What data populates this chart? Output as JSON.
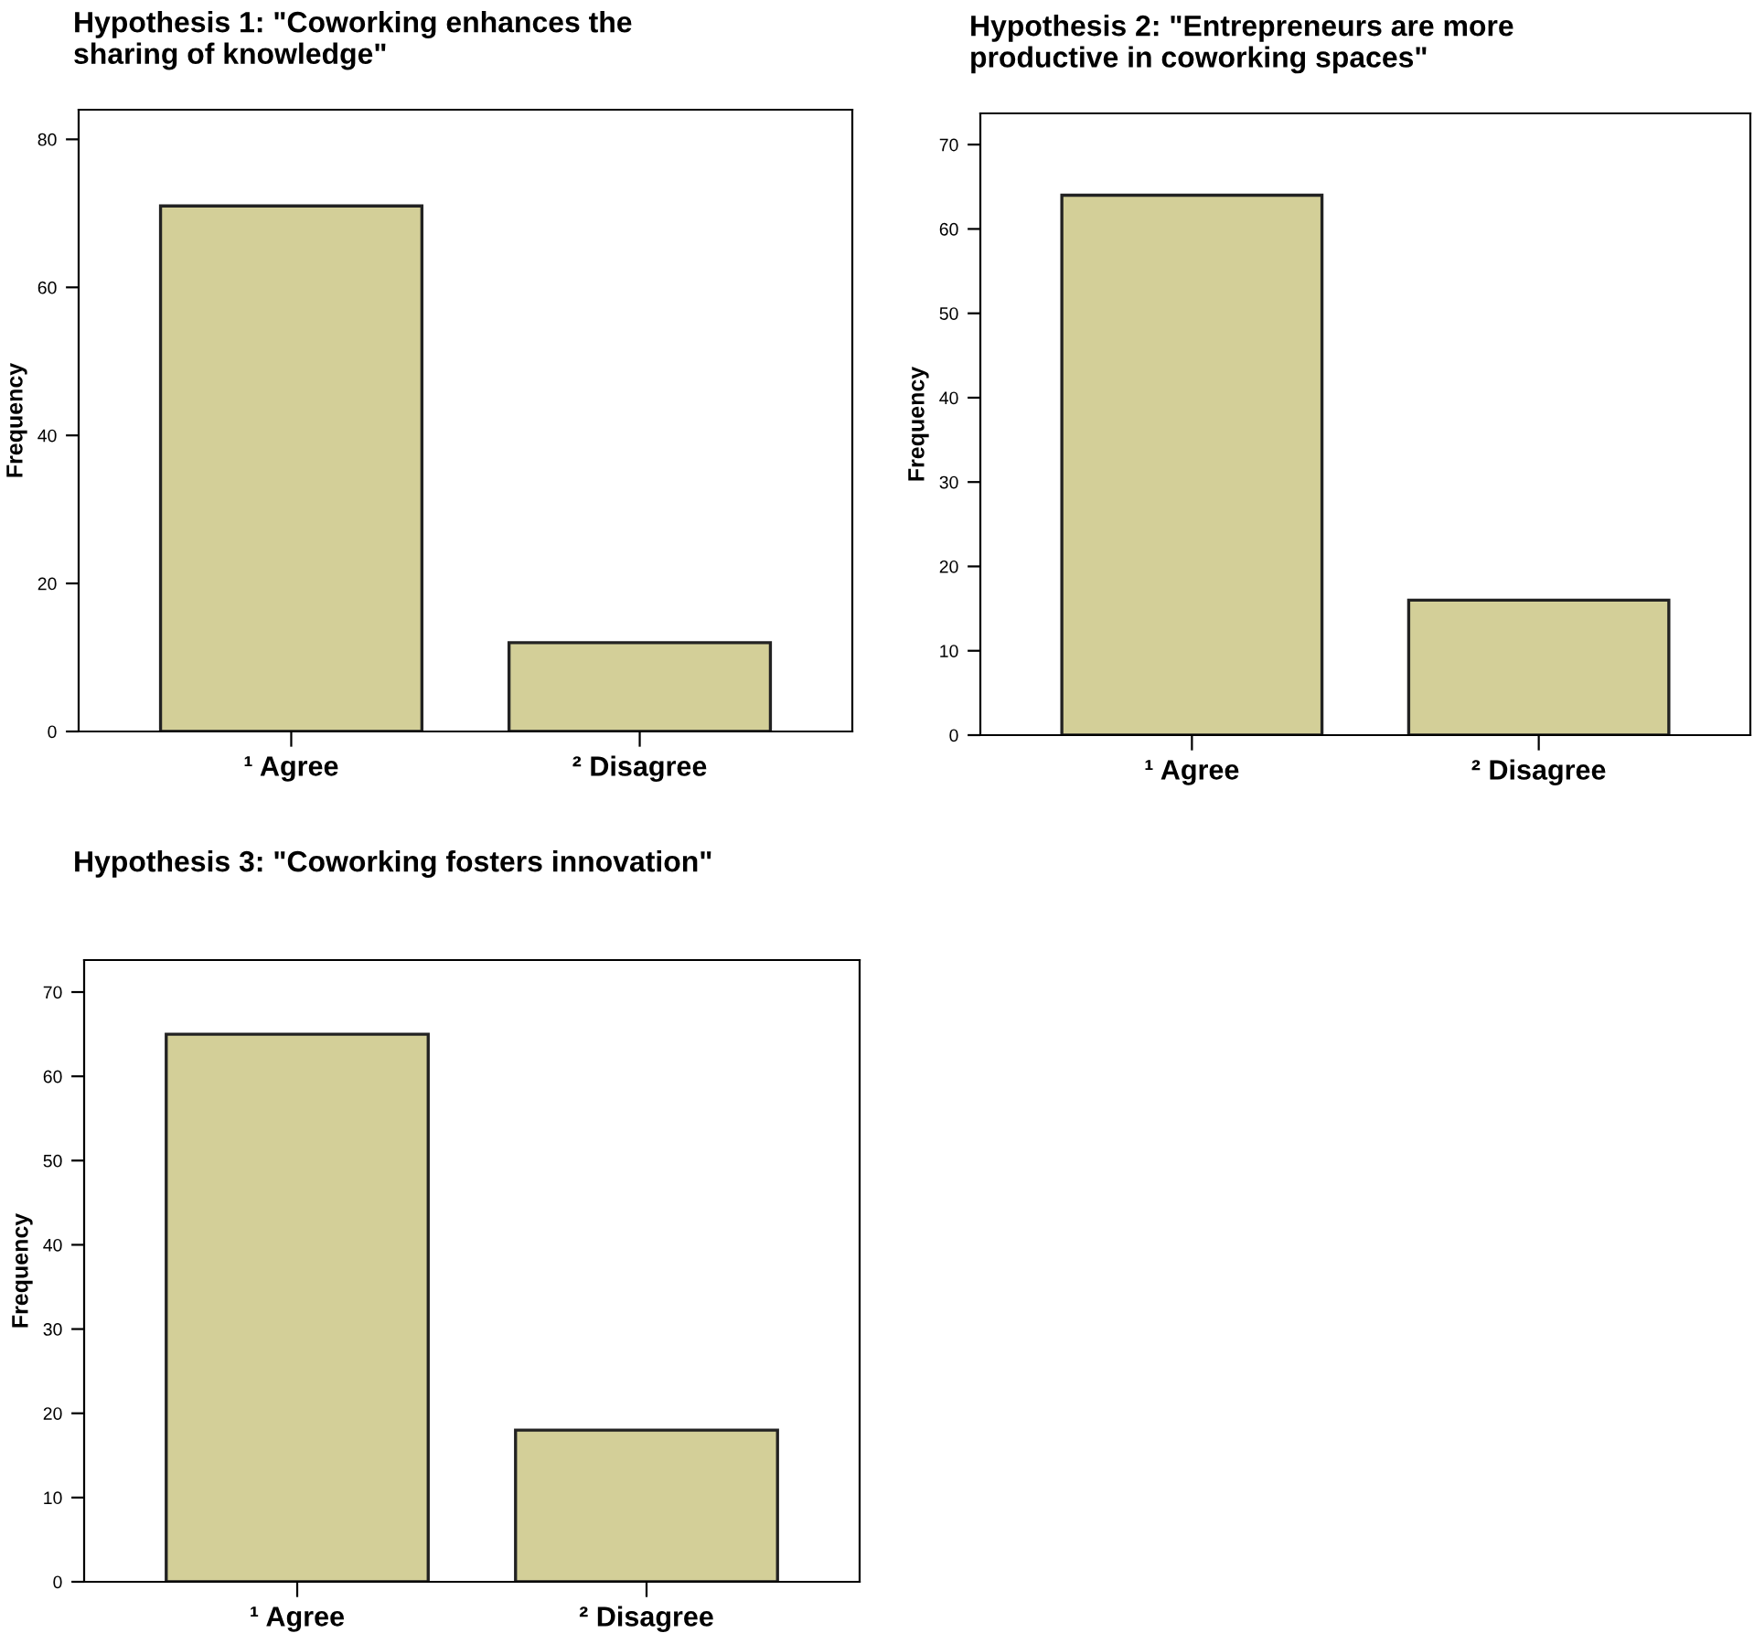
{
  "chart_data": [
    {
      "type": "bar",
      "title": "Hypothesis 1: \"Coworking enhances the\nsharing of knowledge\"",
      "ylabel": "Frequency",
      "categories": [
        "¹ Agree",
        "² Disagree"
      ],
      "values": [
        71,
        12
      ],
      "color": "#d3cf98",
      "ylim": [
        0,
        84
      ],
      "yticks": [
        0,
        20,
        40,
        60,
        80
      ],
      "grid": false
    },
    {
      "type": "bar",
      "title": "Hypothesis 2: \"Entrepreneurs are more\nproductive in coworking spaces\"",
      "ylabel": "Frequency",
      "categories": [
        "¹ Agree",
        "² Disagree"
      ],
      "values": [
        64,
        16
      ],
      "color": "#d3cf98",
      "ylim": [
        0,
        73.7
      ],
      "yticks": [
        0,
        10,
        20,
        30,
        40,
        50,
        60,
        70
      ],
      "grid": false
    },
    {
      "type": "bar",
      "title": "Hypothesis 3: \"Coworking fosters innovation\"",
      "ylabel": "Frequency",
      "categories": [
        "¹ Agree",
        "² Disagree"
      ],
      "values": [
        65,
        18
      ],
      "color": "#d3cf98",
      "ylim": [
        0,
        73.8
      ],
      "yticks": [
        0,
        10,
        20,
        30,
        40,
        50,
        60,
        70
      ],
      "grid": false
    }
  ]
}
